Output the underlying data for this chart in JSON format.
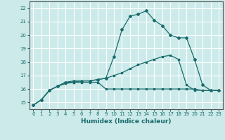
{
  "xlabel": "Humidex (Indice chaleur)",
  "xlim": [
    -0.5,
    23.5
  ],
  "ylim": [
    14.5,
    22.5
  ],
  "yticks": [
    15,
    16,
    17,
    18,
    19,
    20,
    21,
    22
  ],
  "xticks": [
    0,
    1,
    2,
    3,
    4,
    5,
    6,
    7,
    8,
    9,
    10,
    11,
    12,
    13,
    14,
    15,
    16,
    17,
    18,
    19,
    20,
    21,
    22,
    23
  ],
  "bg_color": "#cceaea",
  "grid_color": "#ffffff",
  "line_color": "#1a6b6b",
  "line1_x": [
    0,
    1,
    2,
    3,
    4,
    5,
    6,
    7,
    8,
    9,
    10,
    11,
    12,
    13,
    14,
    15,
    16,
    17,
    18,
    19,
    20,
    21,
    22,
    23
  ],
  "line1_y": [
    14.8,
    15.2,
    15.9,
    16.2,
    16.4,
    16.5,
    16.5,
    16.5,
    16.5,
    16.0,
    16.0,
    16.0,
    16.0,
    16.0,
    16.0,
    16.0,
    16.0,
    16.0,
    16.0,
    16.0,
    16.0,
    15.9,
    15.9,
    15.9
  ],
  "line2_x": [
    0,
    1,
    2,
    3,
    4,
    5,
    6,
    7,
    8,
    9,
    10,
    11,
    12,
    13,
    14,
    15,
    16,
    17,
    18,
    19,
    20,
    21,
    22,
    23
  ],
  "line2_y": [
    14.8,
    15.2,
    15.9,
    16.2,
    16.5,
    16.5,
    16.6,
    16.6,
    16.7,
    16.8,
    17.0,
    17.2,
    17.5,
    17.8,
    18.0,
    18.2,
    18.4,
    18.5,
    18.2,
    16.3,
    15.9,
    15.9,
    15.9,
    15.9
  ],
  "line3_x": [
    0,
    1,
    2,
    3,
    4,
    5,
    6,
    7,
    8,
    9,
    10,
    11,
    12,
    13,
    14,
    15,
    16,
    17,
    18,
    19,
    20,
    21,
    22,
    23
  ],
  "line3_y": [
    14.8,
    15.2,
    15.9,
    16.2,
    16.5,
    16.6,
    16.6,
    16.6,
    16.7,
    16.8,
    18.4,
    20.4,
    21.4,
    21.55,
    21.8,
    21.1,
    20.7,
    20.0,
    19.8,
    19.8,
    18.2,
    16.3,
    15.9,
    15.9
  ]
}
